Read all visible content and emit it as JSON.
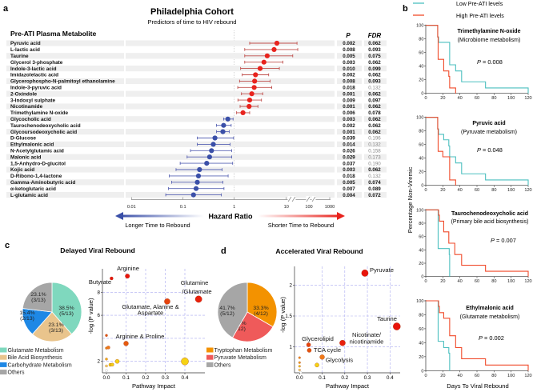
{
  "panel_labels": {
    "a": "a",
    "b": "b",
    "c": "c",
    "d": "d"
  },
  "forest": {
    "title": "Philadelphia Cohort",
    "subtitle": "Predictors of time to HIV rebound",
    "column_header": "Pre-ATI Plasma Metabolite",
    "p_header": "P",
    "fdr_header": "FDR",
    "axis_ticks": [
      "0.01",
      "0.1",
      "1",
      "10",
      "100",
      "1000"
    ],
    "axis_label": "Hazard Ratio",
    "left_arrow_label": "Longer Time to Rebound",
    "right_arrow_label": "Shorter Time to Rebound",
    "colors": {
      "increase": "#e8231d",
      "decrease": "#3a4fa8"
    },
    "rows": [
      {
        "name": "Pyruvic acid",
        "hr": 6.8,
        "lo": 2.0,
        "hi": 35,
        "p": "0.002",
        "fdr": "0.062"
      },
      {
        "name": "L-lactic acid",
        "hr": 6.0,
        "lo": 1.6,
        "hi": 38,
        "p": "0.008",
        "fdr": "0.093"
      },
      {
        "name": "Taurine",
        "hr": 4.4,
        "lo": 1.6,
        "hi": 22,
        "p": "0.005",
        "fdr": "0.075"
      },
      {
        "name": "Glycerol 3-phosphate",
        "hr": 3.8,
        "lo": 1.6,
        "hi": 8.9,
        "p": "0.003",
        "fdr": "0.062"
      },
      {
        "name": "Indole-3-lactic acid",
        "hr": 3.2,
        "lo": 1.33,
        "hi": 7.6,
        "p": "0.010",
        "fdr": "0.099"
      },
      {
        "name": "Imidazolelactic acid",
        "hr": 2.6,
        "lo": 1.43,
        "hi": 4.7,
        "p": "0.002",
        "fdr": "0.062"
      },
      {
        "name": "Glycerophospho-N-palmitoyl ethanolamine",
        "hr": 2.5,
        "lo": 1.27,
        "hi": 5.0,
        "p": "0.008",
        "fdr": "0.093"
      },
      {
        "name": "Indole-3-pyruvic acid",
        "hr": 2.45,
        "lo": 1.17,
        "hi": 5.4,
        "p": "0.018",
        "fdr": "0.132"
      },
      {
        "name": "2-Oxindole",
        "hr": 2.2,
        "lo": 1.38,
        "hi": 3.6,
        "p": "0.001",
        "fdr": "0.062"
      },
      {
        "name": "3-Indoxyl sulphate",
        "hr": 2.0,
        "lo": 1.18,
        "hi": 3.4,
        "p": "0.009",
        "fdr": "0.097"
      },
      {
        "name": "Nicotinamide",
        "hr": 1.95,
        "lo": 1.3,
        "hi": 2.9,
        "p": "0.001",
        "fdr": "0.062"
      },
      {
        "name": "Trimethylamine N-oxide",
        "hr": 1.48,
        "lo": 1.11,
        "hi": 2.0,
        "p": "0.006",
        "fdr": "0.078"
      },
      {
        "name": "Glycocholic acid",
        "hr": 0.75,
        "lo": 0.62,
        "hi": 0.95,
        "p": "0.003",
        "fdr": "0.062"
      },
      {
        "name": "Taurochenodeoxycholic acid",
        "hr": 0.62,
        "lo": 0.45,
        "hi": 0.87,
        "p": "0.002",
        "fdr": "0.062"
      },
      {
        "name": "Glycoursodeoxycholic acid",
        "hr": 0.6,
        "lo": 0.45,
        "hi": 0.8,
        "p": "0.001",
        "fdr": "0.062"
      },
      {
        "name": "D-Glucose",
        "hr": 0.42,
        "lo": 0.19,
        "hi": 0.97,
        "p": "0.039",
        "fdr": "0.196"
      },
      {
        "name": "Ethylmalonic acid",
        "hr": 0.39,
        "lo": 0.19,
        "hi": 0.83,
        "p": "0.014",
        "fdr": "0.132"
      },
      {
        "name": "N-Acetylglutamic acid",
        "hr": 0.36,
        "lo": 0.14,
        "hi": 0.89,
        "p": "0.026",
        "fdr": "0.158"
      },
      {
        "name": "Malonic acid",
        "hr": 0.33,
        "lo": 0.12,
        "hi": 0.89,
        "p": "0.029",
        "fdr": "0.173"
      },
      {
        "name": "1,5-Anhydro-D-glucitol",
        "hr": 0.29,
        "lo": 0.088,
        "hi": 0.93,
        "p": "0.037",
        "fdr": "0.190"
      },
      {
        "name": "Kojic acid",
        "hr": 0.21,
        "lo": 0.073,
        "hi": 0.58,
        "p": "0.003",
        "fdr": "0.062"
      },
      {
        "name": "D-Ribono-1,4-lactone",
        "hr": 0.2,
        "lo": 0.054,
        "hi": 0.76,
        "p": "0.018",
        "fdr": "0.132"
      },
      {
        "name": "Gamma-Aminobutyric acid",
        "hr": 0.19,
        "lo": 0.06,
        "hi": 0.6,
        "p": "0.005",
        "fdr": "0.074"
      },
      {
        "name": "α-ketoglutaric acid",
        "hr": 0.18,
        "lo": 0.052,
        "hi": 0.63,
        "p": "0.007",
        "fdr": "0.089"
      },
      {
        "name": "L-glutamic acid",
        "hr": 0.16,
        "lo": 0.046,
        "hi": 0.56,
        "p": "0.004",
        "fdr": "0.072"
      }
    ]
  },
  "km": {
    "legend": {
      "low": "Low Pre-ATI levels",
      "high": "High Pre-ATI levels"
    },
    "colors": {
      "low": "#4bbfbf",
      "high": "#f04a2a"
    },
    "ylabel": "Percentage Non-Viremic",
    "xlabel": "Days To Viral Rebound",
    "x_ticks": [
      "0",
      "20",
      "40",
      "60",
      "80",
      "100",
      "120"
    ],
    "y_ticks": [
      "0",
      "20",
      "40",
      "60",
      "80",
      "100"
    ],
    "panels": [
      {
        "title": "Trimethylamine N-oxide",
        "subtitle": "(Microbiome metabolism)",
        "p_label": "P",
        "p_value": " = 0.008",
        "low": [
          [
            0,
            100
          ],
          [
            14,
            83
          ],
          [
            15,
            75
          ],
          [
            28,
            42
          ],
          [
            35,
            33
          ],
          [
            42,
            17
          ],
          [
            70,
            8
          ],
          [
            120,
            8
          ],
          [
            120,
            0
          ]
        ],
        "high": [
          [
            0,
            100
          ],
          [
            14,
            83
          ],
          [
            14.5,
            50
          ],
          [
            21,
            33
          ],
          [
            27,
            25
          ],
          [
            28,
            8
          ],
          [
            35,
            0
          ]
        ]
      },
      {
        "title": "Pyruvic acid",
        "subtitle": "(Pyruvate metabolism)",
        "p_label": "P",
        "p_value": " = 0.048",
        "low": [
          [
            0,
            100
          ],
          [
            14,
            83
          ],
          [
            15,
            75
          ],
          [
            21,
            67
          ],
          [
            27,
            58
          ],
          [
            28,
            42
          ],
          [
            35,
            33
          ],
          [
            42,
            17
          ],
          [
            70,
            8
          ],
          [
            120,
            8
          ],
          [
            120,
            0
          ]
        ],
        "high": [
          [
            0,
            100
          ],
          [
            14,
            83
          ],
          [
            14.5,
            50
          ],
          [
            20,
            42
          ],
          [
            27,
            42
          ],
          [
            28,
            8
          ],
          [
            35,
            0
          ]
        ]
      },
      {
        "title": "Taurochenodeoxycholic acid",
        "subtitle": "(Primary bile acid biosynthesis)",
        "p_label": "P",
        "p_value": " = 0.007",
        "low": [
          [
            0,
            100
          ],
          [
            14,
            100
          ],
          [
            14.5,
            42
          ],
          [
            27,
            42
          ],
          [
            27.5,
            33
          ],
          [
            28,
            0
          ]
        ],
        "high": [
          [
            0,
            100
          ],
          [
            15,
            92
          ],
          [
            16,
            83
          ],
          [
            21,
            67
          ],
          [
            27,
            50
          ],
          [
            34,
            33
          ],
          [
            42,
            17
          ],
          [
            70,
            8
          ],
          [
            120,
            8
          ],
          [
            120,
            0
          ]
        ]
      },
      {
        "title": "Ethylmalonic acid",
        "subtitle": "(Glutamate metabolism)",
        "p_label": "P",
        "p_value": " = 0.002",
        "low": [
          [
            0,
            100
          ],
          [
            14,
            100
          ],
          [
            14.5,
            42
          ],
          [
            21,
            33
          ],
          [
            27,
            25
          ],
          [
            28,
            0
          ]
        ],
        "high": [
          [
            0,
            100
          ],
          [
            15,
            92
          ],
          [
            16,
            83
          ],
          [
            21,
            75
          ],
          [
            28,
            50
          ],
          [
            35,
            33
          ],
          [
            42,
            17
          ],
          [
            70,
            8
          ],
          [
            120,
            8
          ],
          [
            120,
            0
          ]
        ]
      }
    ]
  },
  "delayed": {
    "title": "Delayed Viral Rebound",
    "pie": [
      {
        "label": "Glutamate Metabolism",
        "pct": "38.5%",
        "count": "(5/13)",
        "value": 5,
        "color": "#7fd8be"
      },
      {
        "label": "Bile Acid Biosynthesis",
        "pct": "23.1%",
        "count": "(3/13)",
        "value": 3,
        "color": "#e9c48c"
      },
      {
        "label": "Carbohydrate Metabolism",
        "pct": "15.4%",
        "count": "(2/13)",
        "value": 2,
        "color": "#1e88e5"
      },
      {
        "label": "Others",
        "pct": "23.1%",
        "count": "(3/13)",
        "value": 3,
        "color": "#a6a6a6"
      }
    ],
    "ylabel": "-log (P value)",
    "xlabel": "Pathway Impact",
    "x_ticks": [
      "0.0",
      "0.1",
      "0.2",
      "0.3",
      "0.4"
    ],
    "y_ticks": [
      "2",
      "6",
      "8"
    ],
    "labels": [
      "Arginine",
      "Butyrate",
      "Glutamine",
      "/Glutamate",
      "Glutamate, Alanine &",
      "Aspartate",
      "Arginine & Proline"
    ],
    "points": [
      {
        "x": 0.107,
        "y": 9.4,
        "color": "#e8140c"
      },
      {
        "x": 0.026,
        "y": 9.2,
        "color": "#e8140c"
      },
      {
        "x": 0.47,
        "y": 7.4,
        "color": "#e8200c"
      },
      {
        "x": 0.31,
        "y": 7.2,
        "color": "#e5430e"
      },
      {
        "x": 0.1,
        "y": 3.55,
        "color": "#e65a0f"
      },
      {
        "x": 0.0,
        "y": 4.25,
        "color": "#e5530e"
      },
      {
        "x": 0.0,
        "y": 3.15,
        "color": "#f08c1a"
      },
      {
        "x": 0.01,
        "y": 3.2,
        "color": "#f07a1a"
      },
      {
        "x": 0.0,
        "y": 2.2,
        "color": "#f5b414"
      },
      {
        "x": 0.055,
        "y": 2.0,
        "color": "#f5d214"
      },
      {
        "x": 0.02,
        "y": 1.7,
        "color": "#f5d214"
      },
      {
        "x": 0.03,
        "y": 1.72,
        "color": "#f5d214"
      },
      {
        "x": 0.0,
        "y": 1.6,
        "color": "#f8e070"
      },
      {
        "x": 0.0,
        "y": 1.2,
        "color": "#ffffff"
      },
      {
        "x": 0.4,
        "y": 2.0,
        "color": "#f5d214"
      }
    ]
  },
  "accelerated": {
    "title": "Accelerated Viral Rebound",
    "pie": [
      {
        "label": "Tryptophan Metabolism",
        "pct": "33.3%",
        "count": "(4/12)",
        "value": 4,
        "color": "#f39200"
      },
      {
        "label": "Pyruvate Metabolism",
        "pct": "25.0%",
        "count": "(3/12)",
        "value": 3,
        "color": "#ef5a5a"
      },
      {
        "label": "Others",
        "pct": "41.7%",
        "count": "(5/12)",
        "value": 5,
        "color": "#a6a6a6"
      }
    ],
    "ylabel": "-log (P value)",
    "xlabel": "Pathway Impact",
    "x_ticks": [
      "0.0",
      "0.1",
      "0.2",
      "0.3",
      "0.4"
    ],
    "y_ticks": [
      "1",
      "1.5",
      "2"
    ],
    "labels": [
      "Pyruvate",
      "Taurine",
      "Nicotinate/",
      "nicotinamide",
      "Glycerolipid",
      "TCA cycle",
      "Glycolysis"
    ],
    "points": [
      {
        "x": 0.289,
        "y": 2.2,
        "color": "#e8140c"
      },
      {
        "x": 0.43,
        "y": 1.33,
        "color": "#e8140c"
      },
      {
        "x": 0.19,
        "y": 1.06,
        "color": "#e8200c"
      },
      {
        "x": 0.04,
        "y": 1.03,
        "color": "#e5430e"
      },
      {
        "x": 0.043,
        "y": 0.94,
        "color": "#e5530e"
      },
      {
        "x": 0.1,
        "y": 0.83,
        "color": "#f07a1a"
      },
      {
        "x": 0.077,
        "y": 0.7,
        "color": "#f5d214"
      },
      {
        "x": 0.0,
        "y": 0.82,
        "color": "#f08c1a"
      },
      {
        "x": 0.0,
        "y": 0.74,
        "color": "#f0a01a"
      },
      {
        "x": 0.0,
        "y": 0.68,
        "color": "#f5c814"
      },
      {
        "x": 0.0,
        "y": 0.62,
        "color": "#f8e070"
      },
      {
        "x": 0.005,
        "y": 0.58,
        "color": "#ffffff"
      }
    ]
  }
}
